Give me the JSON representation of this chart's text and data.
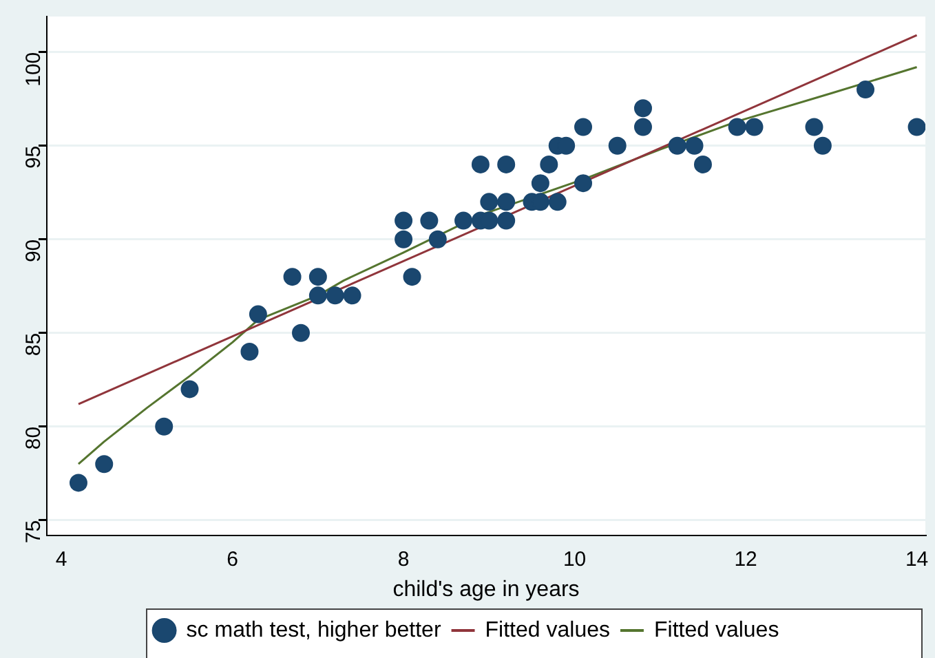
{
  "chart_data": {
    "type": "scatter",
    "xlabel": "child's age in years",
    "xlim": [
      3.83,
      14.1
    ],
    "xticks": [
      4,
      6,
      8,
      10,
      12,
      14
    ],
    "ylim": [
      74.2,
      101.9
    ],
    "yticks": [
      75,
      80,
      85,
      90,
      95,
      100
    ],
    "grid": "y",
    "legend": "bottom",
    "series": [
      {
        "name": "sc math test, higher better",
        "type": "scatter",
        "marker": "circle",
        "color": "#1a476f",
        "x": [
          4.2,
          4.5,
          5.2,
          5.5,
          6.2,
          6.3,
          6.7,
          6.8,
          7.0,
          7.0,
          7.2,
          7.4,
          8.0,
          8.0,
          8.1,
          8.3,
          8.4,
          8.7,
          8.9,
          8.9,
          9.0,
          9.0,
          9.2,
          9.2,
          9.2,
          9.5,
          9.6,
          9.6,
          9.7,
          9.8,
          9.8,
          9.9,
          10.1,
          10.1,
          10.5,
          10.8,
          10.8,
          11.2,
          11.4,
          11.5,
          11.9,
          12.1,
          12.8,
          12.9,
          13.4,
          14.0
        ],
        "values": [
          77,
          78,
          80,
          82,
          84,
          86,
          88,
          85,
          88,
          87,
          87,
          87,
          91,
          90,
          88,
          91,
          90,
          91,
          94,
          91,
          91,
          92,
          94,
          92,
          91,
          92,
          93,
          92,
          94,
          95,
          92,
          95,
          96,
          93,
          95,
          97,
          96,
          95,
          95,
          94,
          96,
          96,
          96,
          95,
          98,
          96
        ]
      },
      {
        "name": "Fitted values",
        "type": "line",
        "marker": "none",
        "color": "#90353b",
        "x": [
          4.2,
          14.0
        ],
        "values": [
          81.2,
          100.9
        ]
      },
      {
        "name": "Fitted values",
        "type": "line",
        "marker": "none",
        "color": "#55752f",
        "x": [
          4.2,
          4.5,
          5.0,
          5.5,
          6.0,
          6.3,
          7.0,
          7.3,
          8.0,
          8.9,
          10.1,
          11.0,
          11.9,
          13.0,
          14.0
        ],
        "values": [
          78.0,
          79.2,
          81.0,
          82.7,
          84.5,
          85.7,
          87.0,
          87.8,
          89.3,
          91.3,
          93.2,
          94.8,
          96.3,
          97.8,
          99.2
        ]
      }
    ]
  }
}
